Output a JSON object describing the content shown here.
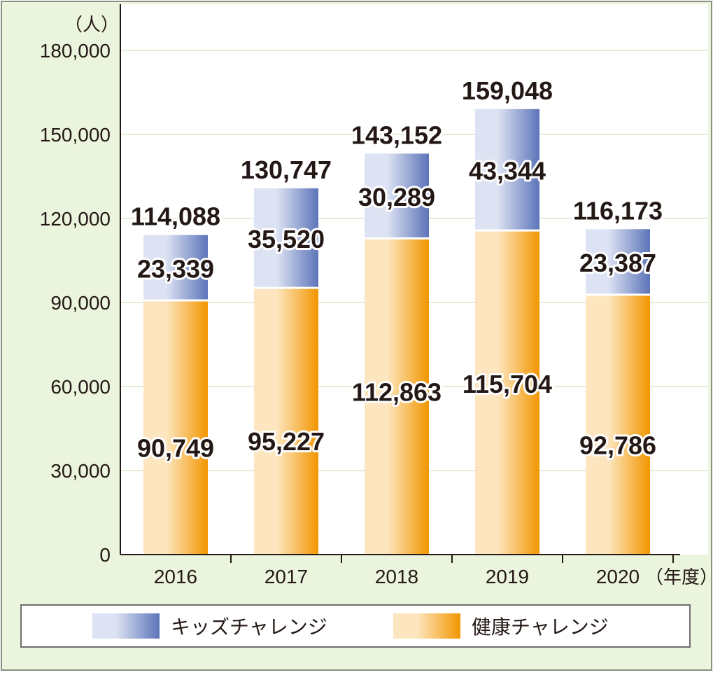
{
  "chart_data": {
    "type": "bar",
    "stacked": true,
    "categories": [
      "2016",
      "2017",
      "2018",
      "2019",
      "2020"
    ],
    "x_unit": "（年度）",
    "y_unit": "（人）",
    "ylim": [
      0,
      180000
    ],
    "yticks": [
      "0",
      "30,000",
      "60,000",
      "90,000",
      "120,000",
      "150,000",
      "180,000"
    ],
    "ytick_values": [
      0,
      30000,
      60000,
      90000,
      120000,
      150000,
      180000
    ],
    "grid": true,
    "legend_position": "bottom",
    "series": [
      {
        "name": "健康チャレンジ",
        "values": [
          90749,
          95227,
          112863,
          115704,
          92786
        ],
        "labels": [
          "90,749",
          "95,227",
          "112,863",
          "115,704",
          "92,786"
        ],
        "color_dark": "#f29600",
        "color_light": "#fde6bf"
      },
      {
        "name": "キッズチャレンジ",
        "values": [
          23339,
          35520,
          30289,
          43344,
          23387
        ],
        "labels": [
          "23,339",
          "35,520",
          "30,289",
          "43,344",
          "23,387"
        ],
        "color_dark": "#5c74b9",
        "color_light": "#dde3f3"
      }
    ],
    "totals": [
      114088,
      130747,
      143152,
      159048,
      116173
    ],
    "total_labels": [
      "114,088",
      "130,747",
      "143,152",
      "159,048",
      "116,173"
    ]
  },
  "legend": {
    "kids_label": "キッズチャレンジ",
    "health_label": "健康チャレンジ"
  },
  "colors": {
    "panel_background": "#ebf4dc",
    "plot_background": "#ffffff",
    "gridline": "#e6ebd8"
  }
}
